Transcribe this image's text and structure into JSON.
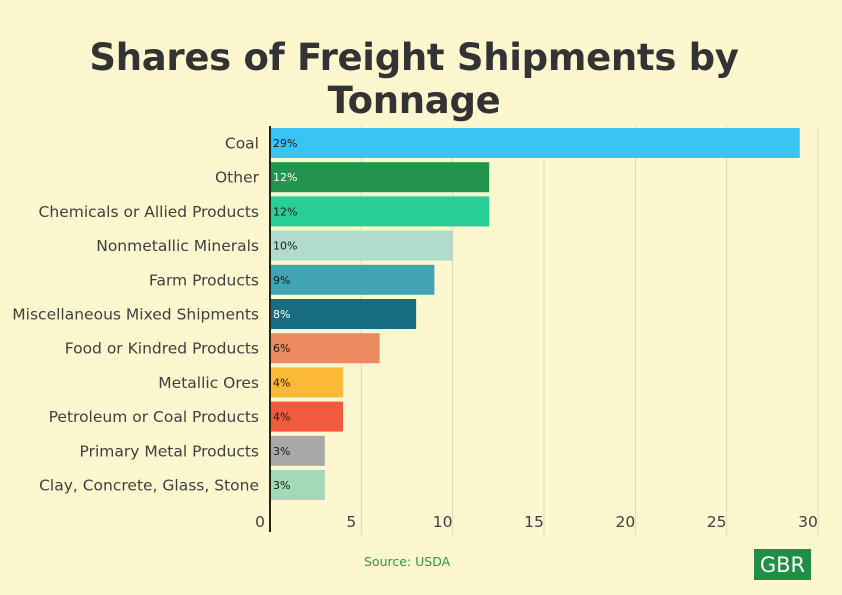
{
  "chart_data": {
    "type": "bar",
    "orientation": "horizontal",
    "title": "Shares of Freight Shipments by Tonnage",
    "categories": [
      "Coal",
      "Other",
      "Chemicals or Allied Products",
      "Nonmetallic Minerals",
      "Farm Products",
      "Miscellaneous Mixed Shipments",
      "Food or Kindred Products",
      "Metallic Ores",
      "Petroleum or Coal Products",
      "Primary Metal Products",
      "Clay, Concrete, Glass, Stone"
    ],
    "values": [
      29,
      12,
      12,
      10,
      9,
      8,
      6,
      4,
      4,
      3,
      3
    ],
    "value_labels": [
      "29%",
      "12%",
      "12%",
      "10%",
      "9%",
      "8%",
      "6%",
      "4%",
      "4%",
      "3%",
      "3%"
    ],
    "colors": [
      "#39c4f5",
      "#23944e",
      "#27cf97",
      "#b1dbcc",
      "#42a4b3",
      "#176c7f",
      "#ec8b62",
      "#fbb937",
      "#f25a3d",
      "#a8a8a8",
      "#a3d9b7"
    ],
    "label_colors": [
      "#1a1a1a",
      "#ffffff",
      "#1a1a1a",
      "#1a1a1a",
      "#1a1a1a",
      "#ffffff",
      "#1a1a1a",
      "#1a1a1a",
      "#1a1a1a",
      "#1a1a1a",
      "#1a1a1a"
    ],
    "xlim": [
      0,
      30
    ],
    "xticks": [
      0,
      5,
      10,
      15,
      20,
      25,
      30
    ],
    "grid": true,
    "legend": "none"
  },
  "footer": {
    "source": "Source: USDA",
    "logo_text": "GBR"
  }
}
